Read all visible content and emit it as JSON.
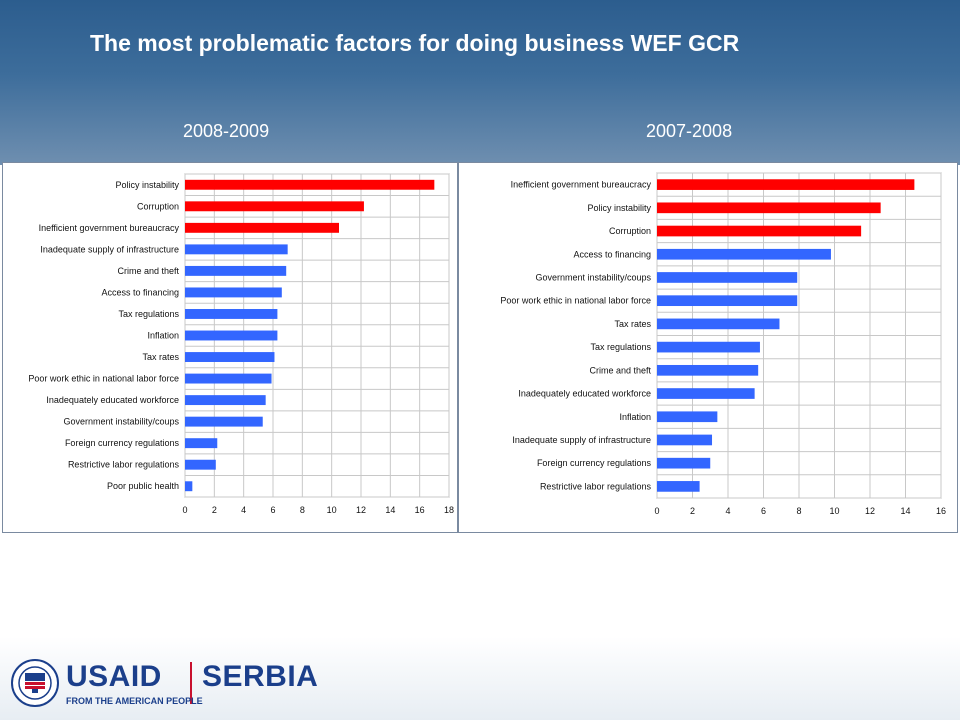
{
  "slide": {
    "title": "The most problematic factors for doing business WEF GCR",
    "period_left": "2008-2009",
    "period_right": "2007-2008"
  },
  "footer": {
    "brand": "USAID",
    "country": "SERBIA",
    "tagline": "FROM THE AMERICAN PEOPLE",
    "seal_icon": "usaid-seal-icon",
    "brand_color": "#1b3f8b",
    "accent_color": "#c8102e"
  },
  "chart_data": [
    {
      "type": "bar",
      "orientation": "horizontal",
      "period": "2008-2009",
      "categories": [
        "Policy instability",
        "Corruption",
        "Inefficient government bureaucracy",
        "Inadequate supply of infrastructure",
        "Crime and theft",
        "Access to financing",
        "Tax regulations",
        "Inflation",
        "Tax rates",
        "Poor work ethic in national labor force",
        "Inadequately educated workforce",
        "Government instability/coups",
        "Foreign currency regulations",
        "Restrictive labor regulations",
        "Poor public health"
      ],
      "values": [
        17.0,
        12.2,
        10.5,
        7.0,
        6.9,
        6.6,
        6.3,
        6.3,
        6.1,
        5.9,
        5.5,
        5.3,
        2.2,
        2.1,
        0.5
      ],
      "highlight_count": 3,
      "xlim": [
        0,
        18
      ],
      "xticks": [
        0,
        2,
        4,
        6,
        8,
        10,
        12,
        14,
        16,
        18
      ],
      "colors": {
        "highlight": "#ff0000",
        "normal": "#3366ff",
        "grid": "#c8c8c8"
      },
      "grid": true
    },
    {
      "type": "bar",
      "orientation": "horizontal",
      "period": "2007-2008",
      "categories": [
        "Inefficient government bureaucracy",
        "Policy instability",
        "Corruption",
        "Access to financing",
        "Government instability/coups",
        "Poor work ethic in national labor force",
        "Tax rates",
        "Tax regulations",
        "Crime and theft",
        "Inadequately educated workforce",
        "Inflation",
        "Inadequate supply of infrastructure",
        "Foreign currency regulations",
        "Restrictive labor regulations"
      ],
      "values": [
        14.5,
        12.6,
        11.5,
        9.8,
        7.9,
        7.9,
        6.9,
        5.8,
        5.7,
        5.5,
        3.4,
        3.1,
        3.0,
        2.4
      ],
      "highlight_count": 3,
      "xlim": [
        0,
        16
      ],
      "xticks": [
        0,
        2,
        4,
        6,
        8,
        10,
        12,
        14,
        16
      ],
      "colors": {
        "highlight": "#ff0000",
        "normal": "#3366ff",
        "grid": "#c8c8c8"
      },
      "grid": true
    }
  ]
}
